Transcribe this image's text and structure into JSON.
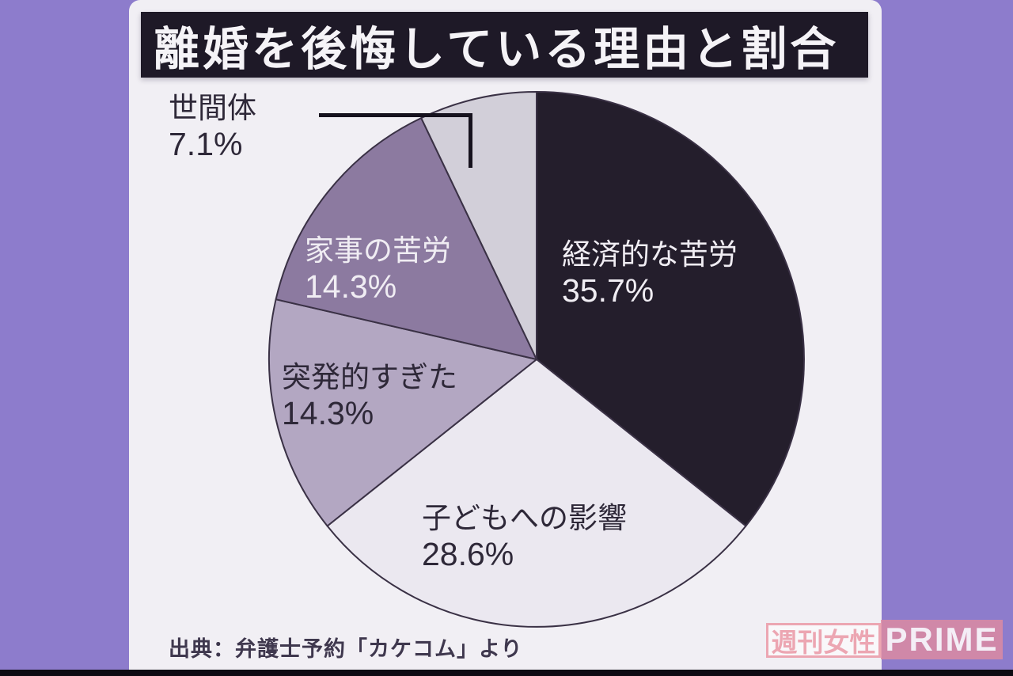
{
  "page": {
    "frame_color": "#8d7ccc",
    "panel_bg": "#f1eff4",
    "bottom_bar_color": "#0d0a12"
  },
  "title": {
    "text": "離婚を後悔している理由と割合",
    "bg_color": "#1e1927",
    "text_color": "#f5f3f7"
  },
  "source": {
    "text": "出典：弁護士予約「カケコム」より"
  },
  "watermark": {
    "left_text": "週刊女性",
    "right_text": "PRIME",
    "pink": "#eca6b2",
    "right_bg": "#df8ba0",
    "right_text_color": "#f4eef6"
  },
  "chart_data": {
    "type": "pie",
    "title": "離婚を後悔している理由と割合",
    "start_angle_deg": 0,
    "direction": "clockwise",
    "total_pct": 100,
    "stroke_color": "#3a3145",
    "source": "出典：弁護士予約「カケコム」より",
    "slices": [
      {
        "label": "経済的な苦労",
        "value_pct": 35.7,
        "display": "35.7%",
        "color": "#241e2c",
        "label_color": "#f0edf3"
      },
      {
        "label": "子どもへの影響",
        "value_pct": 28.6,
        "display": "28.6%",
        "color": "#ebe8f0",
        "label_color": "#2e2838"
      },
      {
        "label": "突発的すぎた",
        "value_pct": 14.3,
        "display": "14.3%",
        "color": "#b3a7c2",
        "label_color": "#2e2838"
      },
      {
        "label": "家事の苦労",
        "value_pct": 14.3,
        "display": "14.3%",
        "color": "#8c7aa0",
        "label_color": "#f0edf3"
      },
      {
        "label": "世間体",
        "value_pct": 7.1,
        "display": "7.1%",
        "color": "#d2cfd9",
        "label_color": "#2e2838"
      }
    ]
  }
}
